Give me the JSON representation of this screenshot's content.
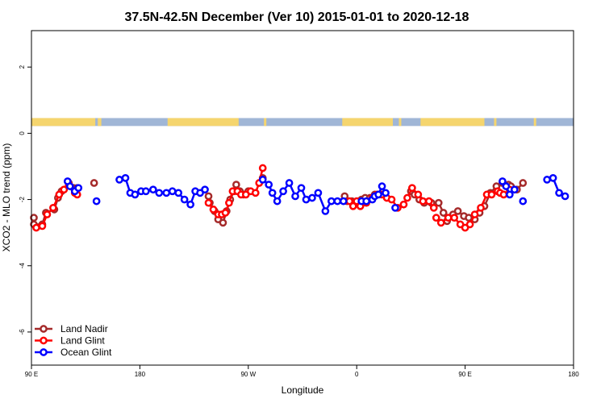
{
  "chart_data": {
    "type": "line",
    "title": "37.5N-42.5N December (Ver 10)   2015-01-01 to 2020-12-18",
    "xlabel": "Longitude",
    "ylabel": "XCO2 - MLO trend (ppm)",
    "xlim": [
      90,
      540
    ],
    "ylim": [
      -7,
      3.1
    ],
    "x_ticks": [
      {
        "value": 90,
        "label": "90 E"
      },
      {
        "value": 180,
        "label": "180"
      },
      {
        "value": 270,
        "label": "90 W"
      },
      {
        "value": 360,
        "label": "0"
      },
      {
        "value": 450,
        "label": "90 E"
      },
      {
        "value": 540,
        "label": "180"
      }
    ],
    "y_ticks": [
      {
        "value": 2,
        "label": "2"
      },
      {
        "value": 0,
        "label": "0"
      },
      {
        "value": -2,
        "label": "-2"
      },
      {
        "value": -4,
        "label": "-4"
      },
      {
        "value": -6,
        "label": "-6"
      }
    ],
    "legend_position": "bottom-left",
    "land_ocean_strip": {
      "y_range": [
        0.22,
        0.46
      ],
      "ocean_color": "#a0b6d6",
      "land_color": "#f5d56e",
      "land_segments": [
        [
          90,
          143
        ],
        [
          145,
          146
        ],
        [
          146,
          148
        ],
        [
          203,
          262
        ],
        [
          283,
          285
        ],
        [
          348,
          390
        ],
        [
          395,
          397
        ],
        [
          413,
          466
        ],
        [
          474,
          476
        ],
        [
          507,
          509
        ]
      ]
    },
    "series": [
      {
        "name": "Land Nadir",
        "color": "#a52a2a",
        "segments": [
          [
            [
              92,
              -2.55
            ],
            [
              92,
              -2.75
            ],
            [
              99,
              -2.75
            ],
            [
              102,
              -2.4
            ],
            [
              109,
              -2.3
            ],
            [
              112,
              -1.95
            ],
            [
              115,
              -1.75
            ],
            [
              121,
              -1.5
            ],
            [
              125,
              -1.65
            ],
            [
              128,
              -1.65
            ]
          ],
          [
            [
              142,
              -1.5
            ]
          ],
          [
            [
              237,
              -1.9
            ],
            [
              238,
              -2.1
            ],
            [
              242,
              -2.35
            ],
            [
              245,
              -2.6
            ],
            [
              249,
              -2.7
            ],
            [
              252,
              -2.35
            ],
            [
              255,
              -2.0
            ],
            [
              258,
              -1.75
            ],
            [
              260,
              -1.55
            ],
            [
              263,
              -1.75
            ],
            [
              266,
              -1.85
            ],
            [
              270,
              -1.75
            ]
          ],
          [
            [
              282,
              -1.35
            ]
          ],
          [
            [
              350,
              -1.9
            ],
            [
              352,
              -2.05
            ],
            [
              356,
              -2.05
            ],
            [
              361,
              -2.1
            ],
            [
              364,
              -2.0
            ],
            [
              367,
              -1.95
            ],
            [
              371,
              -1.95
            ],
            [
              375,
              -1.85
            ]
          ],
          [
            [
              405,
              -1.75
            ],
            [
              408,
              -1.85
            ],
            [
              412,
              -2.0
            ],
            [
              416,
              -2.1
            ],
            [
              422,
              -2.1
            ]
          ],
          [
            [
              428,
              -2.1
            ],
            [
              432,
              -2.4
            ],
            [
              435,
              -2.65
            ],
            [
              440,
              -2.45
            ],
            [
              444,
              -2.35
            ],
            [
              449,
              -2.5
            ],
            [
              453,
              -2.55
            ],
            [
              458,
              -2.6
            ],
            [
              462,
              -2.4
            ],
            [
              466,
              -2.2
            ],
            [
              471,
              -1.8
            ],
            [
              476,
              -1.6
            ],
            [
              481,
              -1.5
            ],
            [
              486,
              -1.55
            ],
            [
              488,
              -1.6
            ],
            [
              493,
              -1.7
            ],
            [
              498,
              -1.5
            ]
          ]
        ]
      },
      {
        "name": "Land Glint",
        "color": "#ff0000",
        "segments": [
          [
            [
              94,
              -2.85
            ],
            [
              99,
              -2.8
            ],
            [
              103,
              -2.45
            ],
            [
              108,
              -2.25
            ],
            [
              113,
              -1.85
            ],
            [
              117,
              -1.7
            ],
            [
              121,
              -1.55
            ],
            [
              126,
              -1.8
            ],
            [
              128,
              -1.85
            ]
          ],
          [
            [
              237,
              -2.1
            ],
            [
              241,
              -2.3
            ],
            [
              245,
              -2.45
            ],
            [
              248,
              -2.45
            ],
            [
              251,
              -2.4
            ],
            [
              254,
              -2.1
            ],
            [
              257,
              -1.75
            ],
            [
              261,
              -1.75
            ],
            [
              264,
              -1.85
            ],
            [
              268,
              -1.85
            ],
            [
              272,
              -1.75
            ],
            [
              276,
              -1.8
            ],
            [
              279,
              -1.5
            ],
            [
              282,
              -1.05
            ]
          ],
          [
            [
              354,
              -2.05
            ],
            [
              357,
              -2.2
            ],
            [
              360,
              -2.05
            ],
            [
              363,
              -2.2
            ],
            [
              368,
              -2.1
            ],
            [
              373,
              -1.95
            ],
            [
              377,
              -1.85
            ],
            [
              381,
              -1.85
            ],
            [
              385,
              -1.95
            ],
            [
              389,
              -2.0
            ],
            [
              394,
              -2.25
            ],
            [
              399,
              -2.15
            ],
            [
              402,
              -1.95
            ],
            [
              406,
              -1.65
            ],
            [
              411,
              -1.85
            ],
            [
              415,
              -2.05
            ],
            [
              420,
              -2.05
            ],
            [
              424,
              -2.25
            ]
          ],
          [
            [
              426,
              -2.55
            ],
            [
              430,
              -2.7
            ],
            [
              436,
              -2.55
            ],
            [
              441,
              -2.55
            ],
            [
              446,
              -2.75
            ],
            [
              450,
              -2.85
            ],
            [
              454,
              -2.75
            ],
            [
              458,
              -2.45
            ],
            [
              463,
              -2.25
            ],
            [
              468,
              -1.85
            ],
            [
              472,
              -1.85
            ],
            [
              477,
              -1.75
            ],
            [
              479,
              -1.8
            ],
            [
              482,
              -1.85
            ],
            [
              487,
              -1.7
            ]
          ]
        ]
      },
      {
        "name": "Ocean Glint",
        "color": "#0000ff",
        "segments": [
          [
            [
              120,
              -1.45
            ],
            [
              122,
              -1.6
            ],
            [
              126,
              -1.75
            ],
            [
              129,
              -1.65
            ]
          ],
          [
            [
              144,
              -2.05
            ]
          ],
          [
            [
              163,
              -1.4
            ],
            [
              168,
              -1.35
            ],
            [
              172,
              -1.8
            ],
            [
              176,
              -1.85
            ],
            [
              181,
              -1.75
            ],
            [
              185,
              -1.75
            ],
            [
              191,
              -1.7
            ],
            [
              196,
              -1.8
            ],
            [
              202,
              -1.8
            ],
            [
              207,
              -1.75
            ],
            [
              212,
              -1.8
            ],
            [
              217,
              -2.0
            ],
            [
              222,
              -2.15
            ],
            [
              226,
              -1.75
            ],
            [
              230,
              -1.8
            ],
            [
              234,
              -1.7
            ]
          ],
          [
            [
              282,
              -1.4
            ],
            [
              287,
              -1.55
            ],
            [
              290,
              -1.8
            ],
            [
              294,
              -2.05
            ],
            [
              299,
              -1.75
            ],
            [
              304,
              -1.5
            ],
            [
              309,
              -1.9
            ],
            [
              314,
              -1.65
            ],
            [
              318,
              -2.0
            ],
            [
              323,
              -1.95
            ],
            [
              328,
              -1.8
            ],
            [
              334,
              -2.35
            ],
            [
              339,
              -2.05
            ],
            [
              344,
              -2.05
            ],
            [
              349,
              -2.05
            ]
          ],
          [
            [
              364,
              -2.05
            ],
            [
              368,
              -2.05
            ],
            [
              373,
              -2.0
            ],
            [
              375,
              -1.9
            ],
            [
              378,
              -1.85
            ],
            [
              381,
              -1.6
            ],
            [
              384,
              -1.8
            ]
          ],
          [
            [
              392,
              -2.25
            ]
          ],
          [
            [
              481,
              -1.45
            ],
            [
              484,
              -1.6
            ],
            [
              487,
              -1.85
            ],
            [
              491,
              -1.7
            ]
          ],
          [
            [
              498,
              -2.05
            ]
          ],
          [
            [
              518,
              -1.4
            ],
            [
              523,
              -1.35
            ],
            [
              528,
              -1.8
            ],
            [
              533,
              -1.9
            ]
          ]
        ]
      }
    ]
  }
}
